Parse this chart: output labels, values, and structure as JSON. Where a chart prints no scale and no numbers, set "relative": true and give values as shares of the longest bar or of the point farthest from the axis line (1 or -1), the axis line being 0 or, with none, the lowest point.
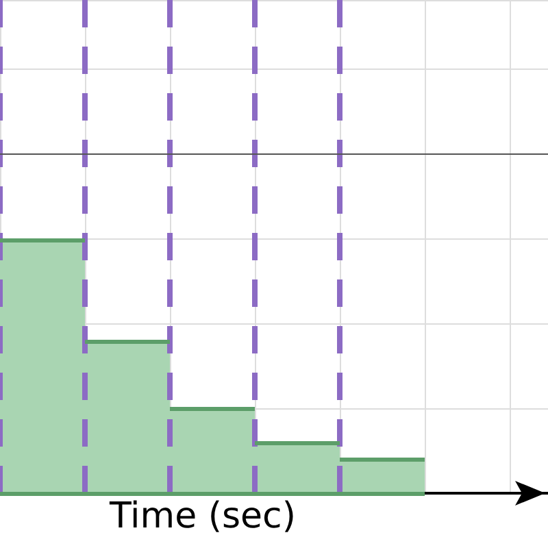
{
  "chart_data": {
    "type": "bar",
    "xlabel": "Time (sec)",
    "categories": [
      null,
      null,
      null,
      null,
      null
    ],
    "values": [
      1,
      0.6,
      0.335,
      0.2,
      0.135
    ],
    "relative": true,
    "color": "#a9d5b2",
    "grid": true
  }
}
